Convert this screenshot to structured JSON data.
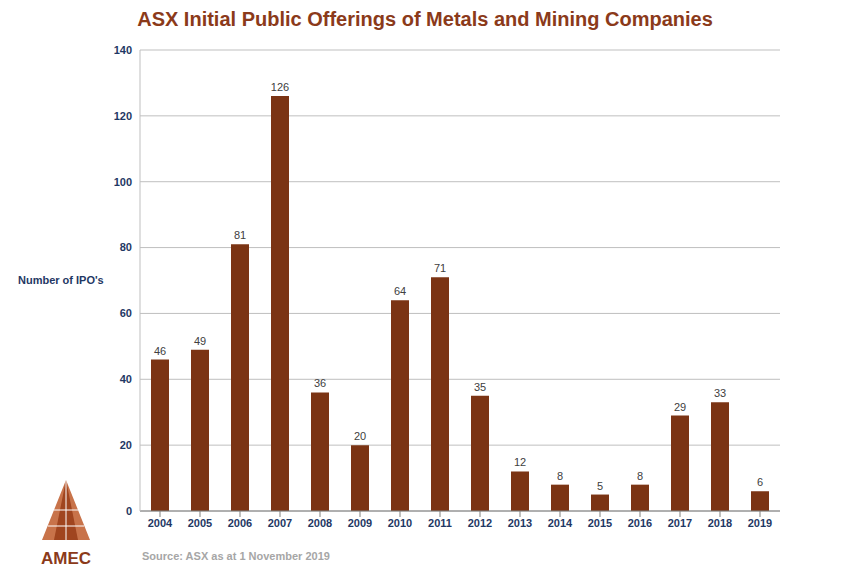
{
  "chart_data": {
    "type": "bar",
    "title": "ASX Initial Public Offerings of Metals and Mining Companies",
    "y_label": "Number of IPO's",
    "source": "Source: ASX as at 1 November 2019",
    "logo": "AMEC",
    "categories": [
      "2004",
      "2005",
      "2006",
      "2007",
      "2008",
      "2009",
      "2010",
      "2011",
      "2012",
      "2013",
      "2014",
      "2015",
      "2016",
      "2017",
      "2018",
      "2019"
    ],
    "values": [
      46,
      49,
      81,
      126,
      36,
      20,
      64,
      71,
      35,
      12,
      8,
      5,
      8,
      29,
      33,
      6
    ],
    "color": "#7b3414",
    "ylim": [
      0,
      140
    ],
    "yticks": [
      0,
      20,
      40,
      60,
      80,
      100,
      120,
      140
    ],
    "grid": true,
    "data_labels": true
  }
}
